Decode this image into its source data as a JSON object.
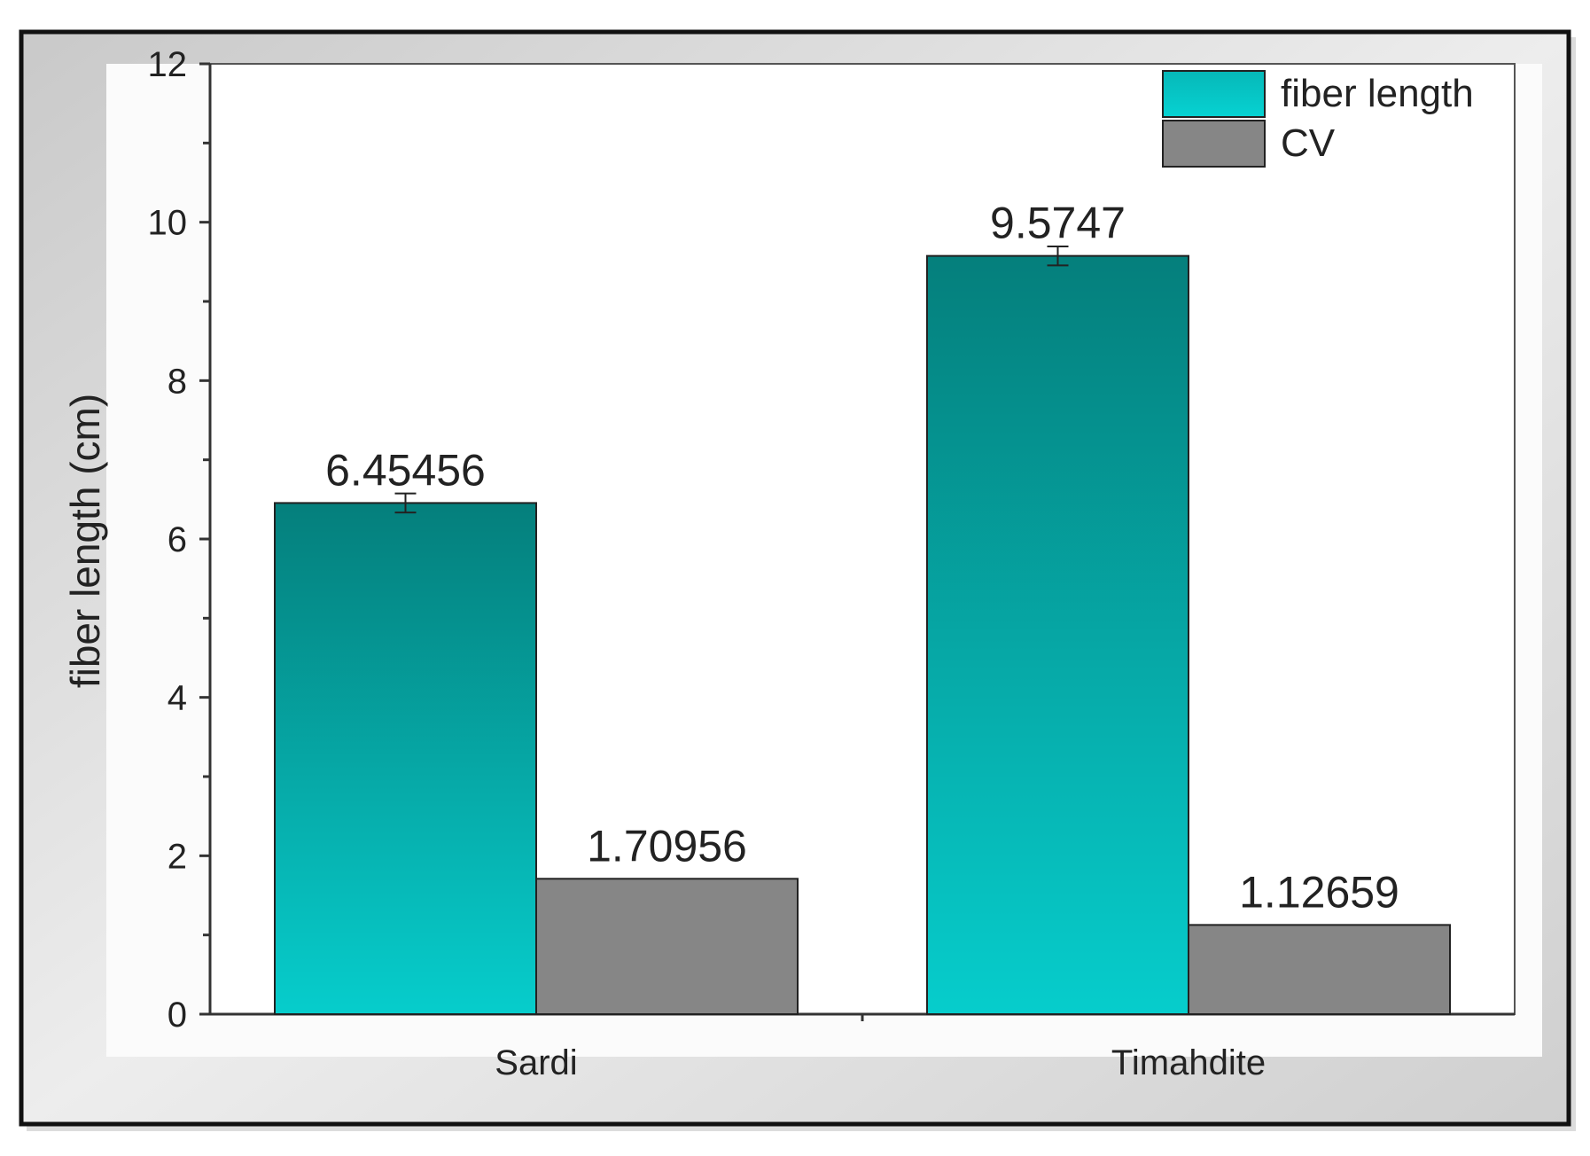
{
  "chart_data": {
    "type": "bar",
    "categories": [
      "Sardi",
      "Timahdite"
    ],
    "series": [
      {
        "name": "fiber length",
        "values": [
          6.45456,
          9.5747
        ],
        "labels": [
          "6.45456",
          "9.5747"
        ],
        "error": [
          0.12,
          0.12
        ],
        "color_top": "#057f7c",
        "color_bottom": "#06cdcc"
      },
      {
        "name": "CV",
        "values": [
          1.70956,
          1.12659
        ],
        "labels": [
          "1.70956",
          "1.12659"
        ],
        "color": "#868686"
      }
    ],
    "title": "",
    "xlabel": "",
    "ylabel": "fiber length (cm)",
    "ylim": [
      0,
      12
    ],
    "yticks": [
      0,
      2,
      4,
      6,
      8,
      10,
      12
    ],
    "grid": false,
    "legend": "top-right"
  }
}
